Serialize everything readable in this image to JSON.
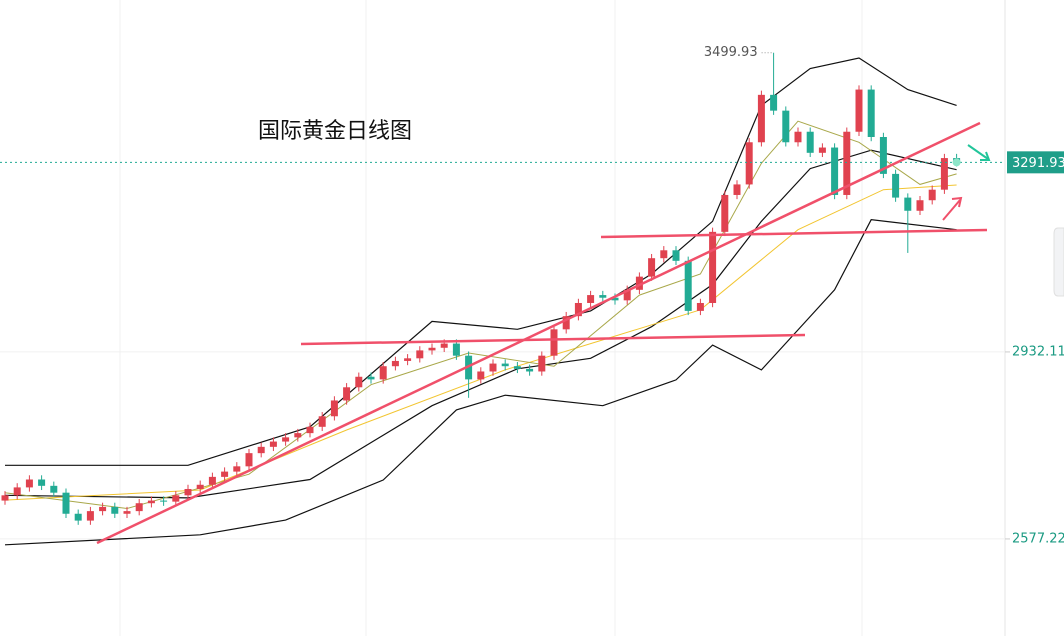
{
  "chart_data": {
    "type": "candlestick",
    "title": "国际黄金日线图",
    "open": [
      2650,
      2660,
      2675,
      2690,
      2678,
      2665,
      2625,
      2612,
      2630,
      2638,
      2625,
      2630,
      2645,
      2650,
      2648,
      2660,
      2672,
      2680,
      2695,
      2705,
      2715,
      2740,
      2752,
      2762,
      2770,
      2778,
      2790,
      2810,
      2840,
      2865,
      2885,
      2880,
      2905,
      2915,
      2920,
      2935,
      2940,
      2948,
      2925,
      2880,
      2895,
      2910,
      2905,
      2900,
      2895,
      2925,
      2975,
      3000,
      3025,
      3040,
      3035,
      3030,
      3050,
      3075,
      3110,
      3125,
      3105,
      3010,
      3025,
      3160,
      3230,
      3250,
      3330,
      3420,
      3390,
      3330,
      3350,
      3310,
      3320,
      3230,
      3350,
      3430,
      3340,
      3270,
      3225,
      3200,
      3220,
      3240,
      3300
    ],
    "high": [
      2668,
      2683,
      2698,
      2698,
      2686,
      2673,
      2633,
      2638,
      2646,
      2646,
      2638,
      2653,
      2658,
      2658,
      2668,
      2680,
      2688,
      2703,
      2713,
      2723,
      2748,
      2760,
      2770,
      2778,
      2786,
      2798,
      2818,
      2848,
      2873,
      2893,
      2893,
      2913,
      2923,
      2928,
      2943,
      2948,
      2956,
      2956,
      2933,
      2903,
      2918,
      2918,
      2913,
      2908,
      2933,
      2983,
      3008,
      3033,
      3048,
      3048,
      3043,
      3058,
      3083,
      3118,
      3133,
      3133,
      3113,
      3033,
      3168,
      3238,
      3258,
      3338,
      3428,
      3499.93,
      3398,
      3358,
      3358,
      3328,
      3328,
      3358,
      3438,
      3438,
      3348,
      3278,
      3233,
      3228,
      3248,
      3308,
      3308
    ],
    "low": [
      2642,
      2652,
      2667,
      2670,
      2657,
      2617,
      2604,
      2604,
      2622,
      2617,
      2617,
      2622,
      2637,
      2640,
      2640,
      2652,
      2664,
      2672,
      2687,
      2697,
      2707,
      2732,
      2744,
      2754,
      2762,
      2770,
      2782,
      2802,
      2832,
      2857,
      2872,
      2872,
      2897,
      2907,
      2912,
      2927,
      2932,
      2917,
      2845,
      2872,
      2887,
      2897,
      2892,
      2887,
      2887,
      2917,
      2967,
      2992,
      3017,
      3027,
      3022,
      3022,
      3042,
      3067,
      3102,
      3097,
      3002,
      3002,
      3017,
      3152,
      3222,
      3242,
      3322,
      3382,
      3322,
      3322,
      3302,
      3302,
      3222,
      3222,
      3342,
      3332,
      3262,
      3217,
      3120,
      3192,
      3212,
      3232,
      3284
    ],
    "close": [
      2660,
      2675,
      2690,
      2678,
      2665,
      2625,
      2612,
      2630,
      2638,
      2625,
      2630,
      2645,
      2650,
      2648,
      2660,
      2672,
      2680,
      2695,
      2705,
      2715,
      2740,
      2752,
      2762,
      2770,
      2778,
      2790,
      2810,
      2840,
      2865,
      2885,
      2880,
      2905,
      2915,
      2920,
      2935,
      2940,
      2948,
      2925,
      2880,
      2895,
      2910,
      2905,
      2900,
      2895,
      2925,
      2975,
      3000,
      3025,
      3040,
      3035,
      3030,
      3050,
      3075,
      3110,
      3125,
      3105,
      3010,
      3025,
      3160,
      3230,
      3250,
      3330,
      3420,
      3390,
      3330,
      3350,
      3310,
      3320,
      3230,
      3350,
      3430,
      3340,
      3270,
      3225,
      3200,
      3220,
      3240,
      3300,
      3291.93
    ],
    "up_color": "#e0424f",
    "down_color": "#22ab94",
    "overlays": [
      {
        "color": "#111111",
        "x": [
          0,
          15,
          25,
          35,
          42,
          48,
          53,
          58,
          62,
          66,
          70,
          74,
          78
        ],
        "values": [
          2717,
          2717,
          2790,
          2990,
          2975,
          3010,
          3080,
          3180,
          3400,
          3470,
          3490,
          3430,
          3400
        ]
      },
      {
        "color": "#111111",
        "x": [
          0,
          15,
          25,
          35,
          42,
          48,
          53,
          58,
          62,
          66,
          71,
          78
        ],
        "values": [
          2660,
          2655,
          2690,
          2830,
          2900,
          2920,
          2980,
          3060,
          3180,
          3280,
          3315,
          3278
        ]
      },
      {
        "color": "#111111",
        "x": [
          0,
          16,
          23,
          31,
          37,
          41,
          49,
          55,
          58,
          62,
          65,
          68,
          71,
          78
        ],
        "values": [
          2566,
          2585,
          2613,
          2689,
          2822,
          2850,
          2830,
          2879,
          2945,
          2898,
          2974,
          3050,
          3183,
          3164
        ]
      },
      {
        "color": "#f2c531",
        "x": [
          0,
          16,
          28,
          41,
          49,
          57,
          65,
          72,
          78
        ],
        "values": [
          2651,
          2670,
          2784,
          2898,
          2955,
          3012,
          3164,
          3240,
          3249
        ]
      },
      {
        "color": "#a9a84a",
        "x": [
          0,
          10,
          20,
          30,
          38,
          45,
          52,
          57,
          62,
          65,
          70,
          75,
          78
        ],
        "values": [
          2665,
          2635,
          2700,
          2870,
          2930,
          2905,
          3040,
          3080,
          3290,
          3370,
          3330,
          3250,
          3270
        ]
      }
    ],
    "ylim": [
      2393,
      3600
    ],
    "yticks": [
      2577.22,
      2932.11
    ],
    "grid": true
  }
}
